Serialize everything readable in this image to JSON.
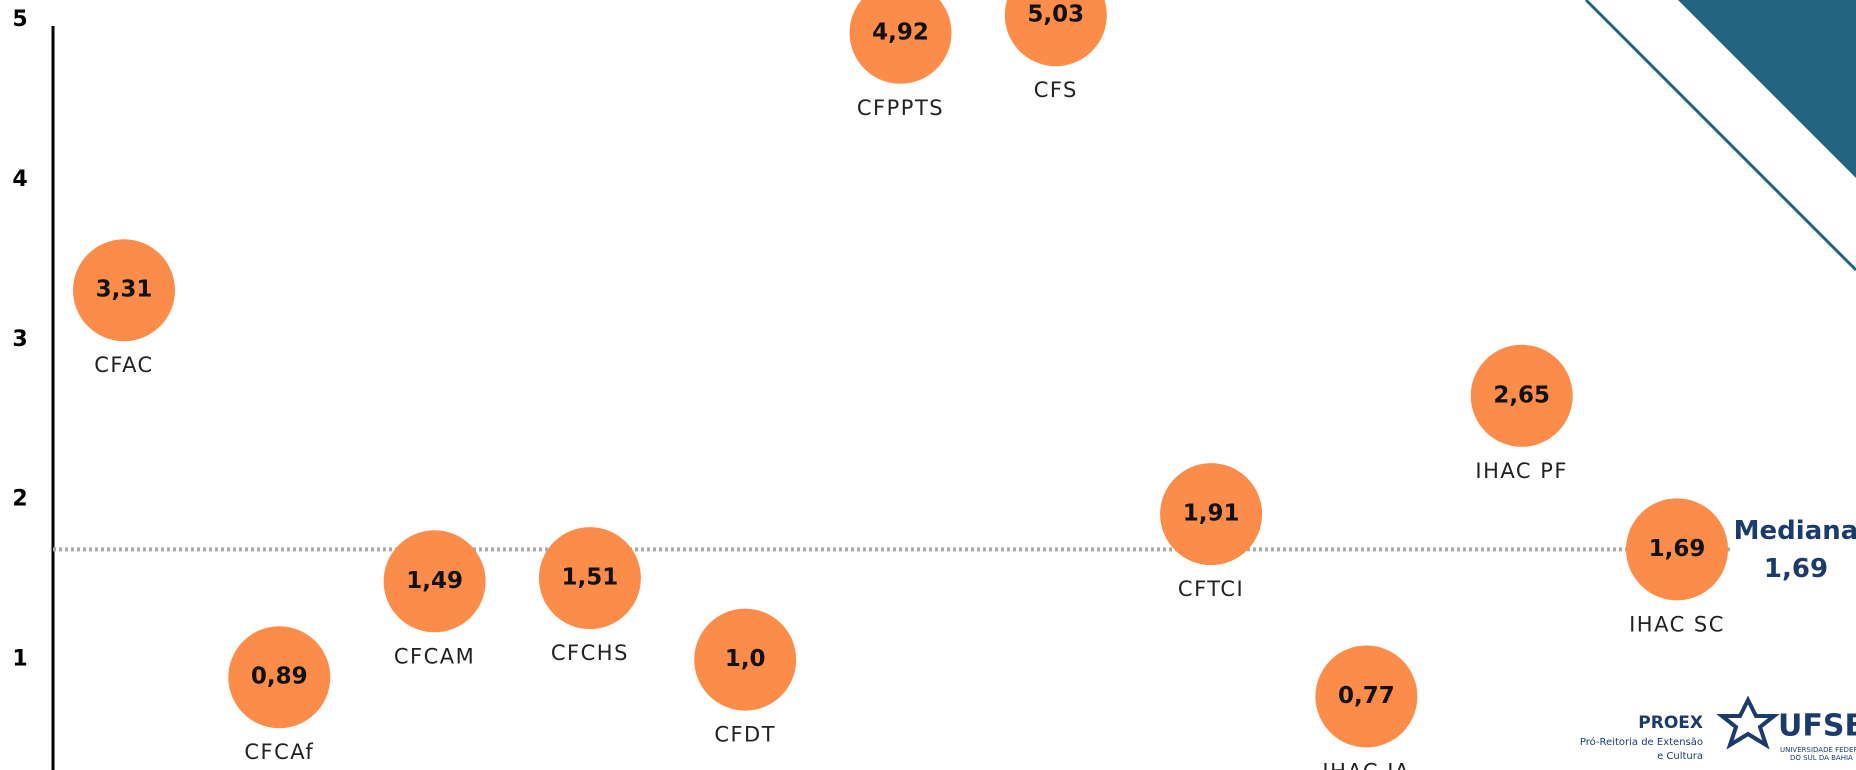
{
  "chart_data": {
    "type": "bubble-scatter",
    "categories": [
      "CFAC",
      "CFCAf",
      "CFCAM",
      "CFCHS",
      "CFDT",
      "CFPPTS",
      "CFS",
      "CFTCI",
      "IHAC JA",
      "IHAC PF",
      "IHAC SC"
    ],
    "values": [
      3.31,
      0.89,
      1.49,
      1.51,
      1.0,
      4.92,
      5.03,
      1.91,
      0.77,
      2.65,
      1.69
    ],
    "value_labels": [
      "3,31",
      "0,89",
      "1,49",
      "1,51",
      "1,0",
      "4,92",
      "5,03",
      "1,91",
      "0,77",
      "2,65",
      "1,69"
    ],
    "color": "#fb8c4a",
    "ylim": [
      0.31,
      5.125
    ],
    "yticks": [
      1,
      2,
      3,
      4,
      5
    ],
    "median": {
      "label": "Mediana",
      "value": 1.69,
      "value_label": "1,69"
    }
  },
  "logo": {
    "proex": "PROEX",
    "proex_subtitle": [
      "Pró-Reitoria de Extensão",
      "e Cultura"
    ],
    "ufsb": "UFSB",
    "ufsb_subtitle": [
      "UNIVERSIDADE FEDERAL",
      "DO SUL DA BAHIA"
    ]
  }
}
